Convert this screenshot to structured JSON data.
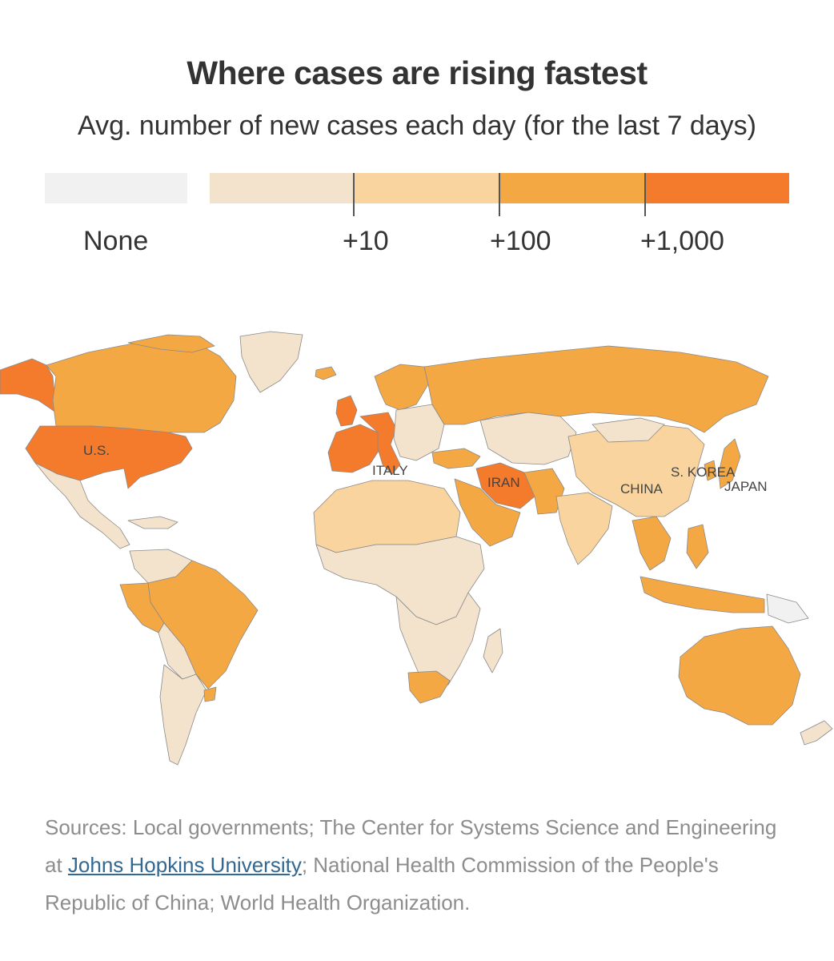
{
  "title": "Where cases are rising fastest",
  "subtitle": "Avg. number of new cases each day (for the last 7 days)",
  "legend": {
    "none_label": "None",
    "ticks": [
      "+10",
      "+100",
      "+1,000"
    ],
    "colors": {
      "none": "#f1f1f1",
      "bin1": "#f4e3cc",
      "bin2": "#f9d49e",
      "bin3": "#f4a843",
      "bin4": "#f47a2c"
    }
  },
  "map": {
    "labels": {
      "us": "U.S.",
      "italy": "ITALY",
      "iran": "IRAN",
      "china": "CHINA",
      "skorea": "S. KOREA",
      "japan": "JAPAN"
    }
  },
  "sources": {
    "prefix": "Sources: Local governments; The Center for Systems Science and Engineering at ",
    "link": "Johns Hopkins University",
    "suffix": "; National Health Commission of the People's Republic of China; World Health Organization."
  }
}
